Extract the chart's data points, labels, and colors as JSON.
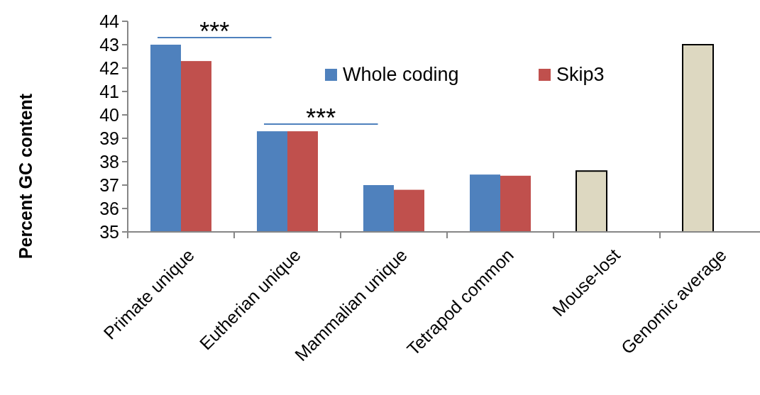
{
  "chart_data": {
    "type": "bar",
    "ylabel": "Percent GC content",
    "categories": [
      "Primate unique",
      "Eutherian unique",
      "Mammalian unique",
      "Tetrapod common",
      "Mouse-lost",
      "Genomic average"
    ],
    "series": [
      {
        "name": "Whole coding",
        "color": "#4f81bd",
        "colors": [
          "#4f81bd",
          "#4f81bd",
          "#4f81bd",
          "#4f81bd",
          "#ddd8c1",
          "#ddd8c1"
        ],
        "values": [
          43.0,
          39.3,
          37.0,
          37.45,
          37.6,
          43.0
        ]
      },
      {
        "name": "Skip3",
        "color": "#c0504d",
        "values": [
          42.3,
          39.3,
          36.8,
          37.4,
          null,
          null
        ]
      }
    ],
    "ylim": [
      35,
      44
    ],
    "yticks": [
      35,
      36,
      37,
      38,
      39,
      40,
      41,
      42,
      43,
      44
    ],
    "grid": false,
    "legend": "top",
    "annotations": [
      "***",
      "***"
    ]
  }
}
